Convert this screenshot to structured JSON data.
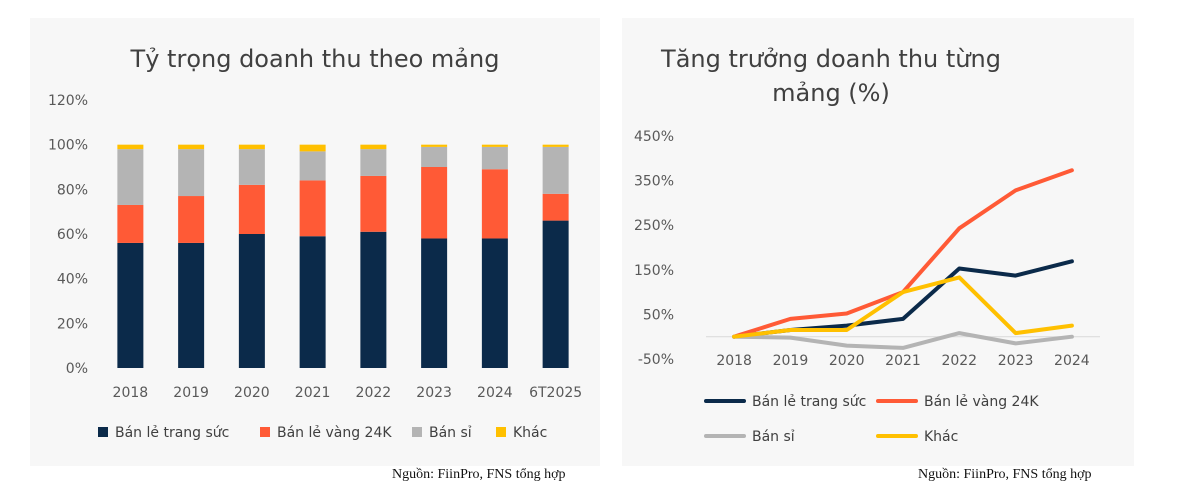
{
  "chart_data": [
    {
      "type": "bar",
      "stacked": true,
      "title": "Tỷ trọng doanh thu theo mảng",
      "categories": [
        "2018",
        "2019",
        "2020",
        "2021",
        "2022",
        "2023",
        "2024",
        "6T2025"
      ],
      "ylim": [
        0,
        120
      ],
      "yticks": [
        "0%",
        "20%",
        "40%",
        "60%",
        "80%",
        "100%",
        "120%"
      ],
      "legend_position": "bottom",
      "grid": false,
      "series": [
        {
          "name": "Bán lẻ trang sức",
          "color": "#0b2a4a",
          "values": [
            56,
            56,
            60,
            59,
            61,
            58,
            58,
            66
          ]
        },
        {
          "name": "Bán lẻ vàng 24K",
          "color": "#ff5a36",
          "values": [
            17,
            21,
            22,
            25,
            25,
            32,
            31,
            12
          ]
        },
        {
          "name": "Bán sỉ",
          "color": "#b4b4b4",
          "values": [
            25,
            21,
            16,
            13,
            12,
            9,
            10,
            21
          ]
        },
        {
          "name": "Khác",
          "color": "#ffc000",
          "values": [
            2,
            2,
            2,
            3,
            2,
            1,
            1,
            1
          ]
        }
      ]
    },
    {
      "type": "line",
      "title": "Tăng trưởng doanh thu từng mảng (%)",
      "title_lines": [
        "Tăng trưởng doanh thu từng",
        "mảng (%)"
      ],
      "x": [
        "2018",
        "2019",
        "2020",
        "2021",
        "2022",
        "2023",
        "2024"
      ],
      "ylim": [
        -50,
        450
      ],
      "yticks": [
        "-50%",
        "50%",
        "150%",
        "250%",
        "350%",
        "450%"
      ],
      "legend_position": "bottom",
      "grid": false,
      "series": [
        {
          "name": "Bán lẻ trang sức",
          "color": "#0b2a4a",
          "values": [
            0,
            15,
            25,
            40,
            153,
            137,
            169
          ]
        },
        {
          "name": "Bán lẻ vàng 24K",
          "color": "#ff5a36",
          "values": [
            0,
            40,
            52,
            100,
            243,
            328,
            373
          ]
        },
        {
          "name": "Bán sỉ",
          "color": "#b4b4b4",
          "values": [
            0,
            -2,
            -20,
            -25,
            8,
            -15,
            0
          ]
        },
        {
          "name": "Khác",
          "color": "#ffc000",
          "values": [
            0,
            15,
            15,
            100,
            133,
            8,
            25
          ]
        }
      ]
    }
  ],
  "sources": {
    "left": "Nguồn: FiinPro, FNS tổng hợp",
    "right": "Nguồn: FiinPro, FNS tổng hợp"
  }
}
